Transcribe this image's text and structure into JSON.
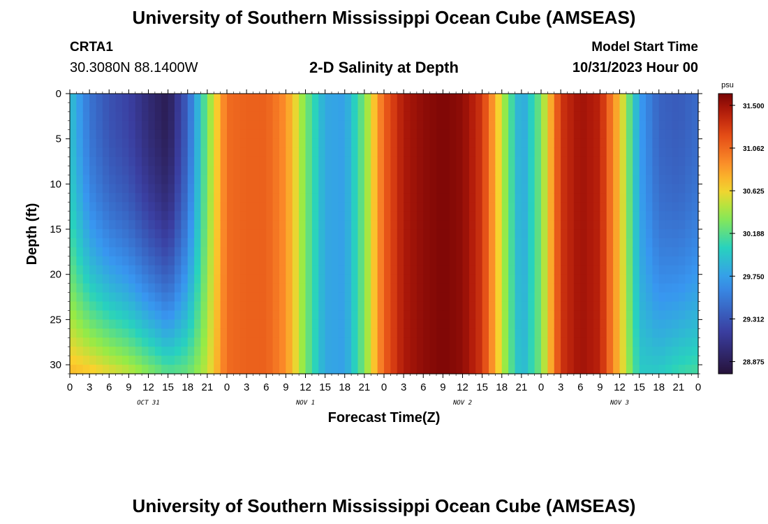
{
  "header": {
    "title": "University of Southern Mississippi Ocean Cube (AMSEAS)",
    "station": "CRTA1",
    "coordinates": "30.3080N  88.1400W",
    "plot_title": "2-D Salinity at Depth",
    "model_start_label": "Model Start Time",
    "model_start_value": "10/31/2023 Hour 00"
  },
  "footer": {
    "title": "University of Southern Mississippi Ocean Cube (AMSEAS)"
  },
  "chart_data": {
    "type": "heatmap",
    "title": "2-D Salinity at Depth",
    "xlabel": "Forecast Time(Z)",
    "ylabel": "Depth (ft)",
    "x_range_hours": [
      0,
      96
    ],
    "x_tick_step_hours": 3,
    "x_tick_labels": [
      "0",
      "3",
      "6",
      "9",
      "12",
      "15",
      "18",
      "21",
      "0",
      "3",
      "6",
      "9",
      "12",
      "15",
      "18",
      "21",
      "0",
      "3",
      "6",
      "9",
      "12",
      "15",
      "18",
      "21",
      "0",
      "3",
      "6",
      "9",
      "12",
      "15",
      "18",
      "21",
      "0"
    ],
    "day_labels": [
      {
        "label": "OCT 31",
        "hour": 12
      },
      {
        "label": "NOV 1",
        "hour": 36
      },
      {
        "label": "NOV 2",
        "hour": 60
      },
      {
        "label": "NOV 3",
        "hour": 84
      }
    ],
    "y_range_ft": [
      0,
      31
    ],
    "y_ticks": [
      0,
      5,
      10,
      15,
      20,
      25,
      30
    ],
    "y_tick_labels": [
      "0",
      "5",
      "10",
      "15",
      "20",
      "25",
      "30"
    ],
    "colorbar": {
      "unit": "psu",
      "min": 28.75,
      "max": 31.62,
      "ticks": [
        31.5,
        31.062,
        30.625,
        30.188,
        29.75,
        29.312,
        28.875
      ],
      "tick_labels": [
        "31.500",
        "31.062",
        "30.625",
        "30.188",
        "29.750",
        "29.312",
        "28.875"
      ]
    },
    "surface_salinity_by_hour": [
      {
        "hour": 0,
        "value": 29.95
      },
      {
        "hour": 3,
        "value": 29.5
      },
      {
        "hour": 6,
        "value": 29.3
      },
      {
        "hour": 9,
        "value": 29.2
      },
      {
        "hour": 12,
        "value": 29.0
      },
      {
        "hour": 15,
        "value": 28.85
      },
      {
        "hour": 18,
        "value": 29.4
      },
      {
        "hour": 21,
        "value": 30.3
      },
      {
        "hour": 24,
        "value": 31.05
      },
      {
        "hour": 27,
        "value": 31.1
      },
      {
        "hour": 30,
        "value": 31.1
      },
      {
        "hour": 33,
        "value": 30.9
      },
      {
        "hour": 36,
        "value": 30.3
      },
      {
        "hour": 39,
        "value": 29.8
      },
      {
        "hour": 42,
        "value": 29.75
      },
      {
        "hour": 45,
        "value": 30.3
      },
      {
        "hour": 48,
        "value": 31.1
      },
      {
        "hour": 51,
        "value": 31.45
      },
      {
        "hour": 54,
        "value": 31.55
      },
      {
        "hour": 57,
        "value": 31.6
      },
      {
        "hour": 60,
        "value": 31.55
      },
      {
        "hour": 63,
        "value": 31.3
      },
      {
        "hour": 66,
        "value": 30.5
      },
      {
        "hour": 69,
        "value": 29.75
      },
      {
        "hour": 72,
        "value": 30.3
      },
      {
        "hour": 75,
        "value": 31.3
      },
      {
        "hour": 78,
        "value": 31.5
      },
      {
        "hour": 81,
        "value": 31.4
      },
      {
        "hour": 84,
        "value": 30.7
      },
      {
        "hour": 87,
        "value": 29.75
      },
      {
        "hour": 90,
        "value": 29.4
      },
      {
        "hour": 93,
        "value": 29.35
      },
      {
        "hour": 96,
        "value": 29.45
      }
    ],
    "bottom_salinity_by_hour": [
      {
        "hour": 0,
        "value": 30.75
      },
      {
        "hour": 3,
        "value": 30.7
      },
      {
        "hour": 6,
        "value": 30.6
      },
      {
        "hour": 9,
        "value": 30.5
      },
      {
        "hour": 12,
        "value": 30.35
      },
      {
        "hour": 15,
        "value": 30.2
      },
      {
        "hour": 18,
        "value": 30.25
      },
      {
        "hour": 21,
        "value": 30.5
      },
      {
        "hour": 24,
        "value": 31.05
      },
      {
        "hour": 27,
        "value": 31.1
      },
      {
        "hour": 30,
        "value": 31.1
      },
      {
        "hour": 33,
        "value": 30.9
      },
      {
        "hour": 36,
        "value": 30.3
      },
      {
        "hour": 39,
        "value": 29.8
      },
      {
        "hour": 42,
        "value": 29.75
      },
      {
        "hour": 45,
        "value": 30.3
      },
      {
        "hour": 48,
        "value": 31.1
      },
      {
        "hour": 51,
        "value": 31.45
      },
      {
        "hour": 54,
        "value": 31.55
      },
      {
        "hour": 57,
        "value": 31.6
      },
      {
        "hour": 60,
        "value": 31.55
      },
      {
        "hour": 63,
        "value": 31.3
      },
      {
        "hour": 66,
        "value": 30.5
      },
      {
        "hour": 69,
        "value": 29.85
      },
      {
        "hour": 72,
        "value": 30.3
      },
      {
        "hour": 75,
        "value": 31.3
      },
      {
        "hour": 78,
        "value": 31.5
      },
      {
        "hour": 81,
        "value": 31.4
      },
      {
        "hour": 84,
        "value": 30.7
      },
      {
        "hour": 87,
        "value": 30.0
      },
      {
        "hour": 90,
        "value": 30.0
      },
      {
        "hour": 93,
        "value": 30.1
      },
      {
        "hour": 96,
        "value": 30.15
      }
    ]
  }
}
